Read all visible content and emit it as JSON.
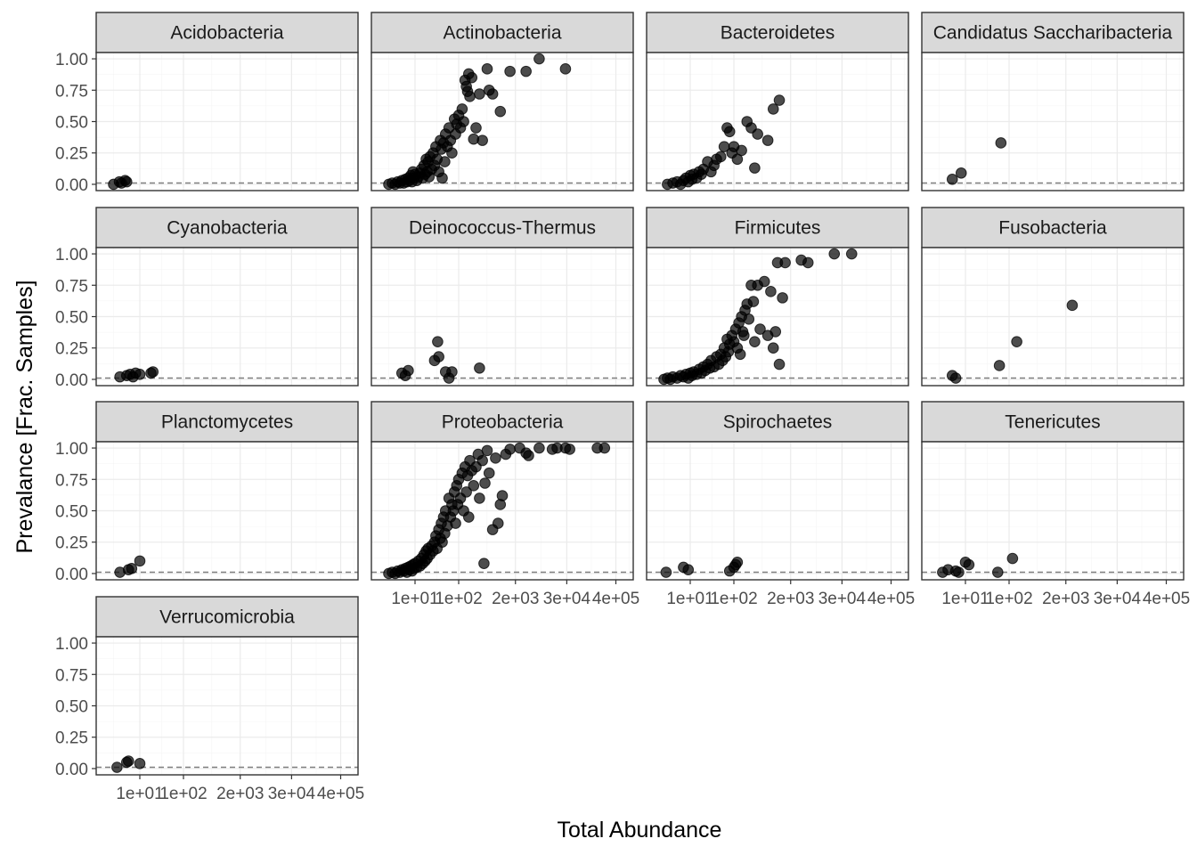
{
  "chart_data": {
    "type": "scatter",
    "facet_by": "Phylum",
    "xlabel": "Total Abundance",
    "ylabel": "Prevalance [Frac. Samples]",
    "x_scale": "log10",
    "x_tick_labels": [
      "1e+01",
      "1e+02",
      "2e+03",
      "3e+04",
      "4e+05"
    ],
    "x_tick_values": [
      10,
      100,
      2000,
      30000,
      400000
    ],
    "xlim": [
      1.0,
      1000000
    ],
    "y_tick_labels": [
      "0.00",
      "0.25",
      "0.50",
      "0.75",
      "1.00"
    ],
    "y_tick_values": [
      0,
      0.25,
      0.5,
      0.75,
      1.0
    ],
    "ylim": [
      -0.05,
      1.05
    ],
    "hline": {
      "y": 0.01,
      "style": "dashed",
      "color": "#7f7f7f"
    },
    "grid": true,
    "point_color": "#000000",
    "facets": [
      {
        "name": "Acidobacteria",
        "points": [
          [
            2.5,
            0.0
          ],
          [
            3.4,
            0.02
          ],
          [
            3.8,
            0.01
          ],
          [
            4.6,
            0.03
          ],
          [
            5.0,
            0.02
          ]
        ]
      },
      {
        "name": "Actinobacteria",
        "points": [
          [
            2.5,
            0.0
          ],
          [
            3,
            0.01
          ],
          [
            3.5,
            0.0
          ],
          [
            4,
            0.02
          ],
          [
            4.5,
            0.01
          ],
          [
            5,
            0.03
          ],
          [
            5.5,
            0.01
          ],
          [
            6,
            0.04
          ],
          [
            6.5,
            0.02
          ],
          [
            7,
            0.05
          ],
          [
            7.5,
            0.03
          ],
          [
            8,
            0.07
          ],
          [
            8.5,
            0.02
          ],
          [
            9,
            0.1
          ],
          [
            9.5,
            0.05
          ],
          [
            10,
            0.08
          ],
          [
            11,
            0.03
          ],
          [
            12,
            0.06
          ],
          [
            13,
            0.09
          ],
          [
            14,
            0.12
          ],
          [
            15,
            0.05
          ],
          [
            16,
            0.15
          ],
          [
            17,
            0.08
          ],
          [
            18,
            0.2
          ],
          [
            19,
            0.1
          ],
          [
            20,
            0.18
          ],
          [
            21,
            0.06
          ],
          [
            22,
            0.22
          ],
          [
            24,
            0.12
          ],
          [
            26,
            0.25
          ],
          [
            28,
            0.15
          ],
          [
            30,
            0.3
          ],
          [
            32,
            0.2
          ],
          [
            35,
            0.1
          ],
          [
            38,
            0.35
          ],
          [
            40,
            0.28
          ],
          [
            42,
            0.05
          ],
          [
            45,
            0.33
          ],
          [
            48,
            0.18
          ],
          [
            50,
            0.4
          ],
          [
            55,
            0.3
          ],
          [
            60,
            0.45
          ],
          [
            65,
            0.35
          ],
          [
            70,
            0.25
          ],
          [
            80,
            0.52
          ],
          [
            85,
            0.4
          ],
          [
            90,
            0.48
          ],
          [
            100,
            0.55
          ],
          [
            110,
            0.45
          ],
          [
            120,
            0.6
          ],
          [
            130,
            0.5
          ],
          [
            140,
            0.83
          ],
          [
            150,
            0.78
          ],
          [
            160,
            0.74
          ],
          [
            170,
            0.88
          ],
          [
            180,
            0.7
          ],
          [
            200,
            0.85
          ],
          [
            220,
            0.36
          ],
          [
            250,
            0.45
          ],
          [
            300,
            0.72
          ],
          [
            350,
            0.35
          ],
          [
            450,
            0.92
          ],
          [
            500,
            0.75
          ],
          [
            600,
            0.72
          ],
          [
            900,
            0.58
          ],
          [
            1500,
            0.9
          ],
          [
            3500,
            0.9
          ],
          [
            7000,
            1.0
          ],
          [
            28000,
            0.92
          ]
        ]
      },
      {
        "name": "Bacteroidetes",
        "points": [
          [
            3,
            0.0
          ],
          [
            4,
            0.01
          ],
          [
            5,
            0.02
          ],
          [
            6,
            0.0
          ],
          [
            7,
            0.03
          ],
          [
            8,
            0.05
          ],
          [
            9,
            0.02
          ],
          [
            10,
            0.07
          ],
          [
            11,
            0.04
          ],
          [
            12,
            0.08
          ],
          [
            14,
            0.05
          ],
          [
            16,
            0.1
          ],
          [
            18,
            0.08
          ],
          [
            20,
            0.12
          ],
          [
            25,
            0.18
          ],
          [
            30,
            0.1
          ],
          [
            35,
            0.15
          ],
          [
            40,
            0.2
          ],
          [
            50,
            0.22
          ],
          [
            60,
            0.3
          ],
          [
            70,
            0.45
          ],
          [
            80,
            0.42
          ],
          [
            90,
            0.25
          ],
          [
            100,
            0.3
          ],
          [
            120,
            0.2
          ],
          [
            150,
            0.27
          ],
          [
            200,
            0.5
          ],
          [
            250,
            0.45
          ],
          [
            300,
            0.13
          ],
          [
            350,
            0.4
          ],
          [
            600,
            0.35
          ],
          [
            800,
            0.6
          ],
          [
            1100,
            0.67
          ]
        ]
      },
      {
        "name": "Candidatus Saccharibacteria",
        "points": [
          [
            5,
            0.04
          ],
          [
            8,
            0.09
          ],
          [
            65,
            0.33
          ]
        ]
      },
      {
        "name": "Cyanobacteria",
        "points": [
          [
            3.5,
            0.02
          ],
          [
            5,
            0.03
          ],
          [
            6,
            0.04
          ],
          [
            7,
            0.02
          ],
          [
            8,
            0.05
          ],
          [
            10,
            0.04
          ],
          [
            18,
            0.05
          ],
          [
            20,
            0.06
          ]
        ]
      },
      {
        "name": "Deinococcus-Thermus",
        "points": [
          [
            5,
            0.05
          ],
          [
            6,
            0.03
          ],
          [
            7,
            0.07
          ],
          [
            28,
            0.15
          ],
          [
            33,
            0.3
          ],
          [
            35,
            0.18
          ],
          [
            50,
            0.06
          ],
          [
            60,
            0.01
          ],
          [
            70,
            0.06
          ],
          [
            300,
            0.09
          ]
        ]
      },
      {
        "name": "Firmicutes",
        "points": [
          [
            2.5,
            0.0
          ],
          [
            3,
            0.01
          ],
          [
            3.5,
            0.0
          ],
          [
            4,
            0.02
          ],
          [
            5,
            0.01
          ],
          [
            6,
            0.03
          ],
          [
            7,
            0.02
          ],
          [
            8,
            0.04
          ],
          [
            9,
            0.01
          ],
          [
            10,
            0.05
          ],
          [
            11,
            0.03
          ],
          [
            12,
            0.06
          ],
          [
            14,
            0.04
          ],
          [
            16,
            0.08
          ],
          [
            18,
            0.05
          ],
          [
            20,
            0.1
          ],
          [
            22,
            0.07
          ],
          [
            25,
            0.12
          ],
          [
            28,
            0.09
          ],
          [
            30,
            0.15
          ],
          [
            35,
            0.1
          ],
          [
            40,
            0.18
          ],
          [
            45,
            0.12
          ],
          [
            50,
            0.2
          ],
          [
            55,
            0.15
          ],
          [
            60,
            0.25
          ],
          [
            65,
            0.18
          ],
          [
            70,
            0.32
          ],
          [
            75,
            0.22
          ],
          [
            80,
            0.28
          ],
          [
            90,
            0.35
          ],
          [
            100,
            0.3
          ],
          [
            110,
            0.4
          ],
          [
            120,
            0.25
          ],
          [
            130,
            0.45
          ],
          [
            140,
            0.2
          ],
          [
            150,
            0.5
          ],
          [
            160,
            0.38
          ],
          [
            170,
            0.35
          ],
          [
            180,
            0.55
          ],
          [
            200,
            0.6
          ],
          [
            220,
            0.48
          ],
          [
            250,
            0.75
          ],
          [
            280,
            0.62
          ],
          [
            300,
            0.3
          ],
          [
            350,
            0.75
          ],
          [
            400,
            0.4
          ],
          [
            500,
            0.78
          ],
          [
            600,
            0.35
          ],
          [
            700,
            0.7
          ],
          [
            800,
            0.25
          ],
          [
            900,
            0.38
          ],
          [
            1000,
            0.93
          ],
          [
            1100,
            0.12
          ],
          [
            1300,
            0.65
          ],
          [
            1500,
            0.93
          ],
          [
            3500,
            0.95
          ],
          [
            5000,
            0.93
          ],
          [
            20000,
            1.0
          ],
          [
            50000,
            1.0
          ]
        ]
      },
      {
        "name": "Fusobacteria",
        "points": [
          [
            5,
            0.03
          ],
          [
            6,
            0.01
          ],
          [
            60,
            0.11
          ],
          [
            150,
            0.3
          ],
          [
            2800,
            0.59
          ]
        ]
      },
      {
        "name": "Planctomycetes",
        "points": [
          [
            3.5,
            0.01
          ],
          [
            5.5,
            0.03
          ],
          [
            6.5,
            0.04
          ],
          [
            10,
            0.1
          ]
        ]
      },
      {
        "name": "Proteobacteria",
        "points": [
          [
            2.5,
            0.0
          ],
          [
            3,
            0.01
          ],
          [
            3.5,
            0.0
          ],
          [
            4,
            0.02
          ],
          [
            4.5,
            0.01
          ],
          [
            5,
            0.03
          ],
          [
            5.5,
            0.02
          ],
          [
            6,
            0.04
          ],
          [
            6.5,
            0.01
          ],
          [
            7,
            0.05
          ],
          [
            7.5,
            0.03
          ],
          [
            8,
            0.06
          ],
          [
            8.5,
            0.02
          ],
          [
            9,
            0.07
          ],
          [
            9.5,
            0.04
          ],
          [
            10,
            0.08
          ],
          [
            11,
            0.05
          ],
          [
            12,
            0.1
          ],
          [
            13,
            0.06
          ],
          [
            14,
            0.12
          ],
          [
            15,
            0.08
          ],
          [
            16,
            0.15
          ],
          [
            17,
            0.1
          ],
          [
            18,
            0.18
          ],
          [
            19,
            0.12
          ],
          [
            20,
            0.2
          ],
          [
            22,
            0.15
          ],
          [
            24,
            0.22
          ],
          [
            26,
            0.18
          ],
          [
            28,
            0.25
          ],
          [
            30,
            0.3
          ],
          [
            32,
            0.2
          ],
          [
            35,
            0.35
          ],
          [
            38,
            0.28
          ],
          [
            40,
            0.4
          ],
          [
            42,
            0.25
          ],
          [
            45,
            0.45
          ],
          [
            48,
            0.32
          ],
          [
            50,
            0.5
          ],
          [
            55,
            0.38
          ],
          [
            60,
            0.6
          ],
          [
            65,
            0.45
          ],
          [
            70,
            0.55
          ],
          [
            75,
            0.5
          ],
          [
            80,
            0.65
          ],
          [
            85,
            0.4
          ],
          [
            90,
            0.7
          ],
          [
            95,
            0.55
          ],
          [
            100,
            0.75
          ],
          [
            110,
            0.6
          ],
          [
            120,
            0.8
          ],
          [
            130,
            0.5
          ],
          [
            140,
            0.85
          ],
          [
            150,
            0.65
          ],
          [
            160,
            0.78
          ],
          [
            170,
            0.45
          ],
          [
            180,
            0.9
          ],
          [
            200,
            0.82
          ],
          [
            220,
            0.7
          ],
          [
            250,
            0.85
          ],
          [
            280,
            0.95
          ],
          [
            300,
            0.6
          ],
          [
            350,
            0.9
          ],
          [
            380,
            0.08
          ],
          [
            400,
            0.72
          ],
          [
            450,
            0.98
          ],
          [
            500,
            0.8
          ],
          [
            600,
            0.35
          ],
          [
            700,
            0.92
          ],
          [
            800,
            0.4
          ],
          [
            900,
            0.55
          ],
          [
            1000,
            0.62
          ],
          [
            1200,
            0.95
          ],
          [
            1500,
            0.99
          ],
          [
            2500,
            1.0
          ],
          [
            3500,
            0.96
          ],
          [
            4000,
            0.94
          ],
          [
            7000,
            1.0
          ],
          [
            14000,
            0.99
          ],
          [
            18000,
            1.0
          ],
          [
            28000,
            1.0
          ],
          [
            35000,
            0.99
          ],
          [
            150000,
            1.0
          ],
          [
            220000,
            1.0
          ]
        ]
      },
      {
        "name": "Spirochaetes",
        "points": [
          [
            2.8,
            0.01
          ],
          [
            7,
            0.05
          ],
          [
            9,
            0.03
          ],
          [
            80,
            0.02
          ],
          [
            100,
            0.05
          ],
          [
            110,
            0.07
          ],
          [
            120,
            0.09
          ]
        ]
      },
      {
        "name": "Tenericutes",
        "points": [
          [
            3,
            0.01
          ],
          [
            4,
            0.03
          ],
          [
            6,
            0.02
          ],
          [
            7,
            0.01
          ],
          [
            10,
            0.09
          ],
          [
            12,
            0.07
          ],
          [
            55,
            0.01
          ],
          [
            120,
            0.12
          ]
        ]
      },
      {
        "name": "Verrucomicrobia",
        "points": [
          [
            3,
            0.01
          ],
          [
            5,
            0.05
          ],
          [
            5.5,
            0.06
          ],
          [
            10,
            0.04
          ]
        ]
      }
    ]
  }
}
